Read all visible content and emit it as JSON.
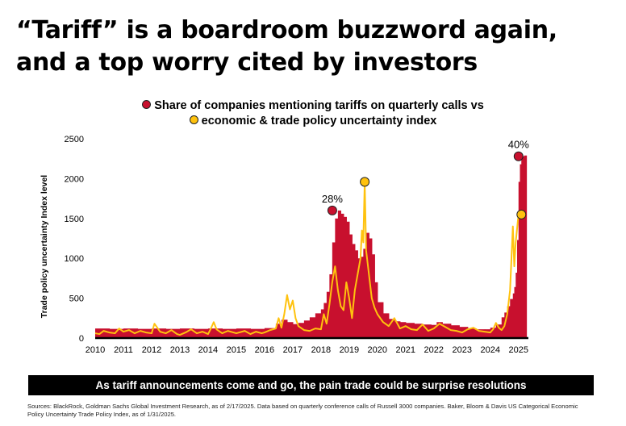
{
  "header": {
    "title_line1": "“Tariff” is a boardroom buzzword again,",
    "title_line2": "and a top worry cited by investors"
  },
  "legend": {
    "item1": "Share of companies mentioning tariffs on quarterly calls vs",
    "item2": "economic & trade policy uncertainty index"
  },
  "colors": {
    "bars": "#c8102e",
    "line": "#ffc20e",
    "marker_red": "#c8102e",
    "marker_yellow": "#ffc20e",
    "banner_bg": "#000000"
  },
  "banner": "As tariff announcements come and go, the pain trade could be surprise resolutions",
  "source": "Sources: BlackRock, Goldman Sachs Global Investment Research, as of 2/17/2025. Data based on quarterly conference calls of Russell 3000 companies. Baker, Bloom & Davis US Categorical Economic Policy Uncertainty Trade Policy Index, as of 1/31/2025.",
  "chart_data": {
    "type": "bar",
    "ylabel": "Trade policy uncertainty Index level",
    "ylim": [
      0,
      2500
    ],
    "yticks": [
      "0",
      "500",
      "1000",
      "1500",
      "2000",
      "2500"
    ],
    "xlim": [
      2010,
      2025.35
    ],
    "xticks": [
      "2010",
      "2011",
      "2012",
      "2013",
      "2014",
      "2015",
      "2016",
      "2017",
      "2018",
      "2019",
      "2020",
      "2021",
      "2022",
      "2023",
      "2024",
      "2025"
    ],
    "grid": false,
    "legend_position": "top-center",
    "series": [
      {
        "name": "Share of companies mentioning tariffs on quarterly calls",
        "kind": "bar",
        "x": [
          2010.0,
          2010.5,
          2011.0,
          2011.5,
          2012.0,
          2012.5,
          2013.0,
          2013.5,
          2014.0,
          2014.5,
          2015.0,
          2015.5,
          2016.0,
          2016.4,
          2016.6,
          2016.8,
          2017.0,
          2017.2,
          2017.4,
          2017.6,
          2017.8,
          2018.0,
          2018.1,
          2018.2,
          2018.3,
          2018.4,
          2018.5,
          2018.6,
          2018.7,
          2018.8,
          2018.9,
          2019.0,
          2019.1,
          2019.2,
          2019.3,
          2019.4,
          2019.5,
          2019.6,
          2019.7,
          2019.8,
          2019.9,
          2020.0,
          2020.2,
          2020.4,
          2020.6,
          2020.8,
          2021.0,
          2021.3,
          2021.6,
          2021.9,
          2022.1,
          2022.3,
          2022.6,
          2022.9,
          2023.2,
          2023.5,
          2023.8,
          2024.0,
          2024.2,
          2024.4,
          2024.5,
          2024.6,
          2024.7,
          2024.8,
          2024.85,
          2024.9,
          2024.95,
          2025.0,
          2025.05,
          2025.1,
          2025.2
        ],
        "values": [
          120,
          115,
          120,
          115,
          120,
          115,
          120,
          115,
          120,
          115,
          120,
          115,
          125,
          180,
          230,
          200,
          175,
          190,
          220,
          260,
          310,
          360,
          440,
          580,
          800,
          1200,
          1500,
          1600,
          1560,
          1520,
          1460,
          1300,
          1180,
          1100,
          1000,
          1020,
          1120,
          1320,
          1250,
          1050,
          700,
          450,
          310,
          240,
          210,
          200,
          190,
          180,
          170,
          165,
          200,
          180,
          160,
          140,
          120,
          110,
          110,
          130,
          170,
          260,
          320,
          400,
          490,
          560,
          640,
          820,
          1230,
          1960,
          2180,
          2280,
          2290
        ]
      },
      {
        "name": "economic & trade policy uncertainty index",
        "kind": "line",
        "x": [
          2010.0,
          2010.15,
          2010.3,
          2010.5,
          2010.7,
          2010.85,
          2011.0,
          2011.2,
          2011.4,
          2011.6,
          2011.8,
          2012.0,
          2012.1,
          2012.3,
          2012.5,
          2012.7,
          2012.9,
          2013.0,
          2013.2,
          2013.4,
          2013.6,
          2013.8,
          2014.0,
          2014.1,
          2014.2,
          2014.3,
          2014.5,
          2014.7,
          2014.9,
          2015.0,
          2015.3,
          2015.5,
          2015.7,
          2015.9,
          2016.0,
          2016.2,
          2016.4,
          2016.5,
          2016.6,
          2016.7,
          2016.8,
          2016.9,
          2017.0,
          2017.1,
          2017.2,
          2017.4,
          2017.6,
          2017.8,
          2018.0,
          2018.1,
          2018.2,
          2018.3,
          2018.4,
          2018.5,
          2018.6,
          2018.7,
          2018.8,
          2018.9,
          2019.0,
          2019.1,
          2019.2,
          2019.3,
          2019.4,
          2019.45,
          2019.5,
          2019.55,
          2019.6,
          2019.7,
          2019.8,
          2019.9,
          2020.0,
          2020.2,
          2020.4,
          2020.6,
          2020.8,
          2021.0,
          2021.2,
          2021.4,
          2021.6,
          2021.8,
          2022.0,
          2022.2,
          2022.4,
          2022.6,
          2022.8,
          2023.0,
          2023.2,
          2023.4,
          2023.6,
          2023.8,
          2024.0,
          2024.1,
          2024.2,
          2024.3,
          2024.4,
          2024.5,
          2024.6,
          2024.7,
          2024.8,
          2024.85,
          2024.9,
          2025.0,
          2025.1
        ],
        "values": [
          60,
          50,
          90,
          70,
          60,
          120,
          80,
          100,
          60,
          90,
          70,
          60,
          180,
          80,
          60,
          100,
          50,
          40,
          70,
          110,
          60,
          80,
          50,
          120,
          200,
          110,
          60,
          90,
          70,
          60,
          90,
          50,
          80,
          60,
          70,
          100,
          120,
          250,
          130,
          300,
          540,
          360,
          470,
          250,
          150,
          100,
          90,
          120,
          110,
          300,
          180,
          420,
          700,
          900,
          600,
          400,
          350,
          700,
          500,
          250,
          600,
          800,
          1000,
          1350,
          1200,
          1960,
          1100,
          800,
          500,
          380,
          300,
          200,
          150,
          250,
          120,
          150,
          110,
          100,
          170,
          90,
          120,
          180,
          140,
          100,
          90,
          70,
          110,
          130,
          90,
          80,
          70,
          110,
          190,
          130,
          100,
          150,
          300,
          600,
          1400,
          900,
          1200,
          1550,
          1560
        ]
      }
    ],
    "annotations": [
      {
        "text": "28%",
        "x": 2018.4,
        "y": 1600,
        "marker": "red"
      },
      {
        "text": "40%",
        "x": 2025.0,
        "y": 2280,
        "marker": "red"
      },
      {
        "text": "",
        "x": 2019.55,
        "y": 1960,
        "marker": "yellow"
      },
      {
        "text": "",
        "x": 2025.1,
        "y": 1550,
        "marker": "yellow"
      }
    ]
  }
}
